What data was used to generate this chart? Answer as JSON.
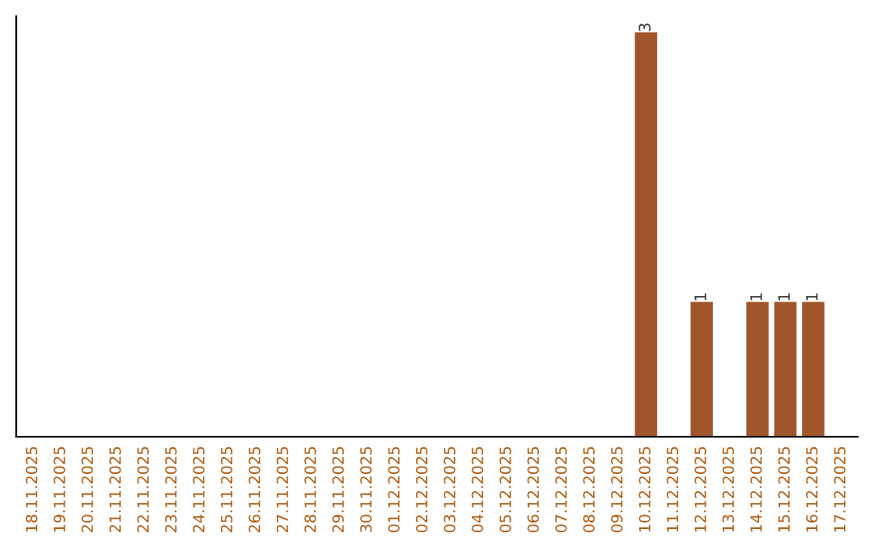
{
  "chart_data": {
    "type": "bar",
    "categories": [
      "18.11.2025",
      "19.11.2025",
      "20.11.2025",
      "21.11.2025",
      "22.11.2025",
      "23.11.2025",
      "24.11.2025",
      "25.11.2025",
      "26.11.2025",
      "27.11.2025",
      "28.11.2025",
      "29.11.2025",
      "30.11.2025",
      "01.12.2025",
      "02.12.2025",
      "03.12.2025",
      "04.12.2025",
      "05.12.2025",
      "06.12.2025",
      "07.12.2025",
      "08.12.2025",
      "09.12.2025",
      "10.12.2025",
      "11.12.2025",
      "12.12.2025",
      "13.12.2025",
      "14.12.2025",
      "15.12.2025",
      "16.12.2025",
      "17.12.2025"
    ],
    "values": [
      null,
      null,
      null,
      null,
      null,
      null,
      null,
      null,
      null,
      null,
      null,
      null,
      null,
      null,
      null,
      null,
      null,
      null,
      null,
      null,
      null,
      null,
      3,
      null,
      1,
      null,
      1,
      1,
      1,
      null
    ],
    "data_labels": true,
    "color": "#a0562a",
    "tick_labels": "x"
  }
}
